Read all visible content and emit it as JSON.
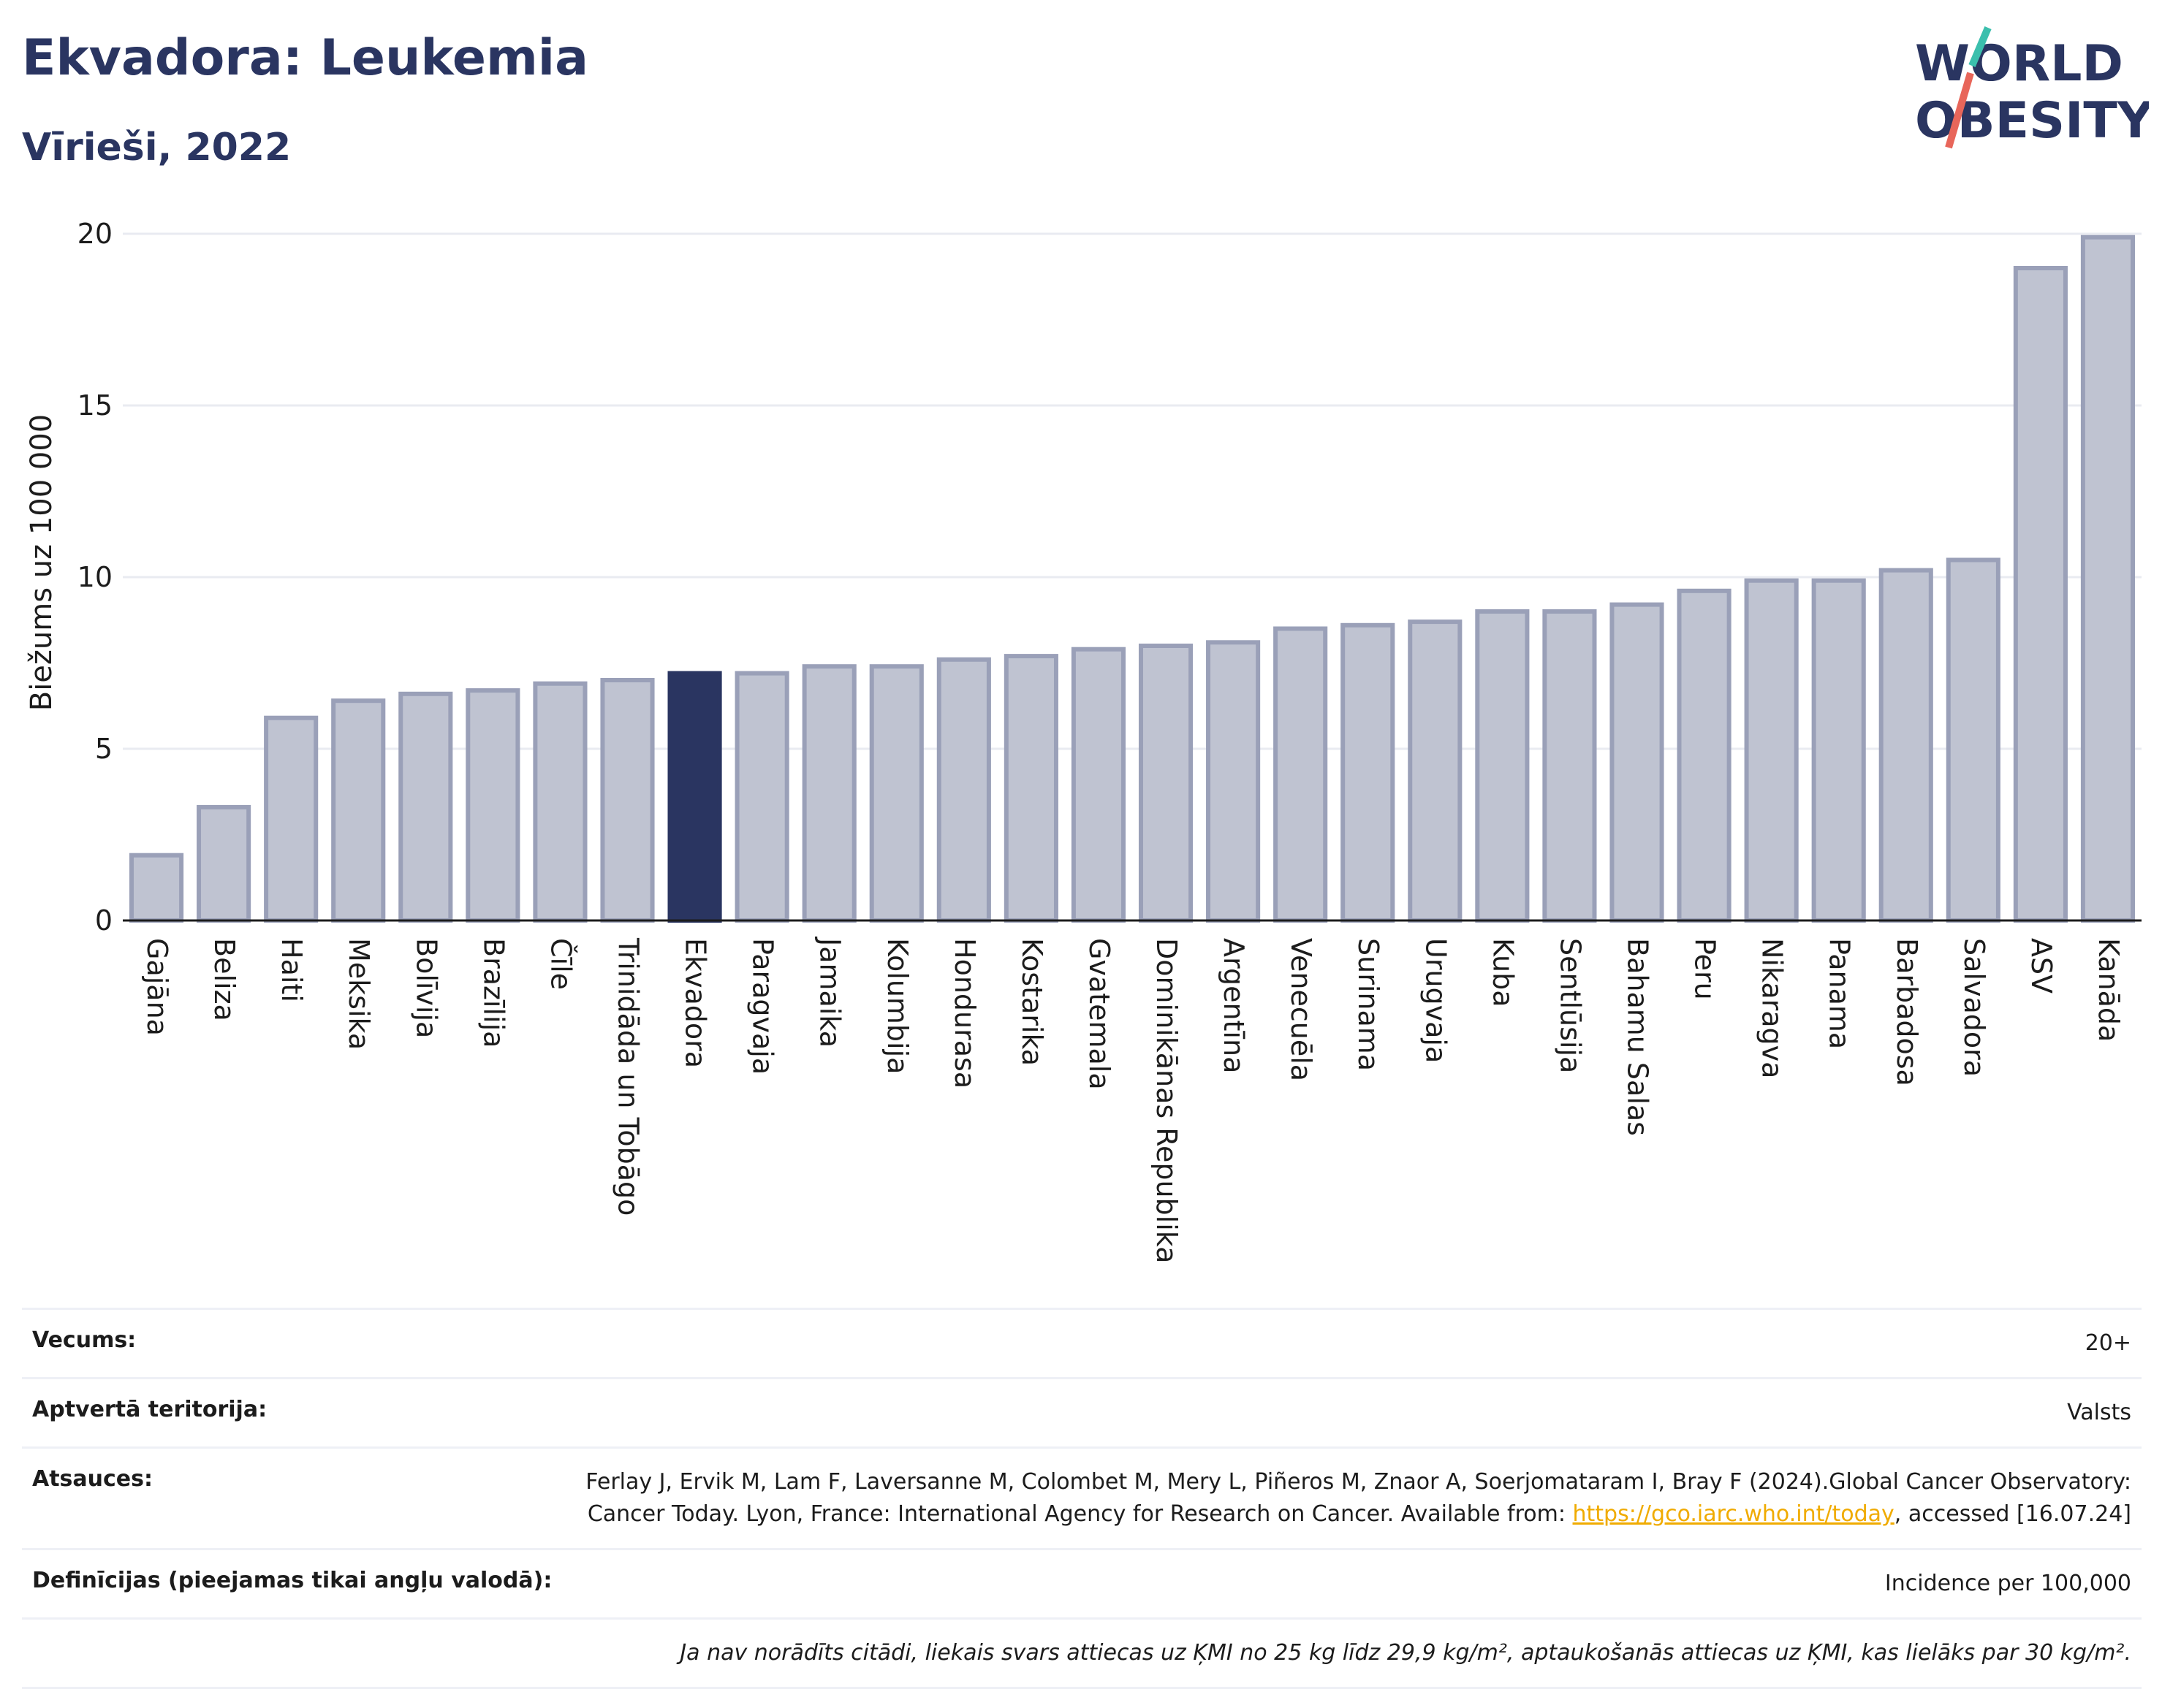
{
  "header": {
    "title": "Ekvadora: Leukemia",
    "subtitle": "Vīrieši, 2022",
    "logo_line1": "WORLD",
    "logo_line2": "OBESITY"
  },
  "colors": {
    "bar": "#bfc3d1",
    "bar_stroke": "#9aa0b8",
    "highlight": "#2a3561",
    "axis": "#1c1c1c",
    "grid": "#e9ebf1"
  },
  "chart_data": {
    "type": "bar",
    "title": "Ekvadora: Leukemia",
    "subtitle": "Vīrieši, 2022",
    "ylabel": "Biežums uz 100 000",
    "xlabel": "",
    "ylim": [
      0,
      20
    ],
    "yticks": [
      0,
      5,
      10,
      15,
      20
    ],
    "grid": true,
    "highlight": "Ekvadora",
    "categories": [
      "Gajāna",
      "Beliza",
      "Haiti",
      "Meksika",
      "Bolīvija",
      "Brazīlija",
      "Čīle",
      "Trinidāda un Tobāgo",
      "Ekvadora",
      "Paragvaja",
      "Jamaika",
      "Kolumbija",
      "Hondurasa",
      "Kostarika",
      "Gvatemala",
      "Dominikānas Republika",
      "Argentīna",
      "Venecuēla",
      "Surinama",
      "Urugvaja",
      "Kuba",
      "Sentlūsija",
      "Bahamu Salas",
      "Peru",
      "Nikaragva",
      "Panama",
      "Barbadosa",
      "Salvadora",
      "ASV",
      "Kanāda"
    ],
    "values": [
      1.9,
      3.3,
      5.9,
      6.4,
      6.6,
      6.7,
      6.9,
      7.0,
      7.2,
      7.2,
      7.4,
      7.4,
      7.6,
      7.7,
      7.9,
      8.0,
      8.1,
      8.5,
      8.6,
      8.7,
      9.0,
      9.0,
      9.2,
      9.6,
      9.9,
      9.9,
      10.2,
      10.5,
      19.0,
      19.9
    ]
  },
  "info": {
    "age_label": "Vecums:",
    "age_value": "20+",
    "territory_label": "Aptvertā teritorija:",
    "territory_value": "Valsts",
    "refs_label": "Atsauces:",
    "refs_text_1": "Ferlay J, Ervik M, Lam F, Laversanne M, Colombet M, Mery L, Piñeros M, Znaor A, Soerjomataram I, Bray F (2024).Global Cancer Observatory: Cancer Today. Lyon, France: International Agency for Research on Cancer. Available from: ",
    "refs_link": "https://gco.iarc.who.int/today",
    "refs_text_2": ", accessed [16.07.24]",
    "defs_label": "Definīcijas (pieejamas tikai angļu valodā):",
    "defs_value": "Incidence per 100,000",
    "note": "Ja nav norādīts citādi, liekais svars attiecas uz ĶMI no 25 kg līdz 29,9 kg/m², aptaukošanās attiecas uz ĶMI, kas lielāks par 30 kg/m²."
  }
}
